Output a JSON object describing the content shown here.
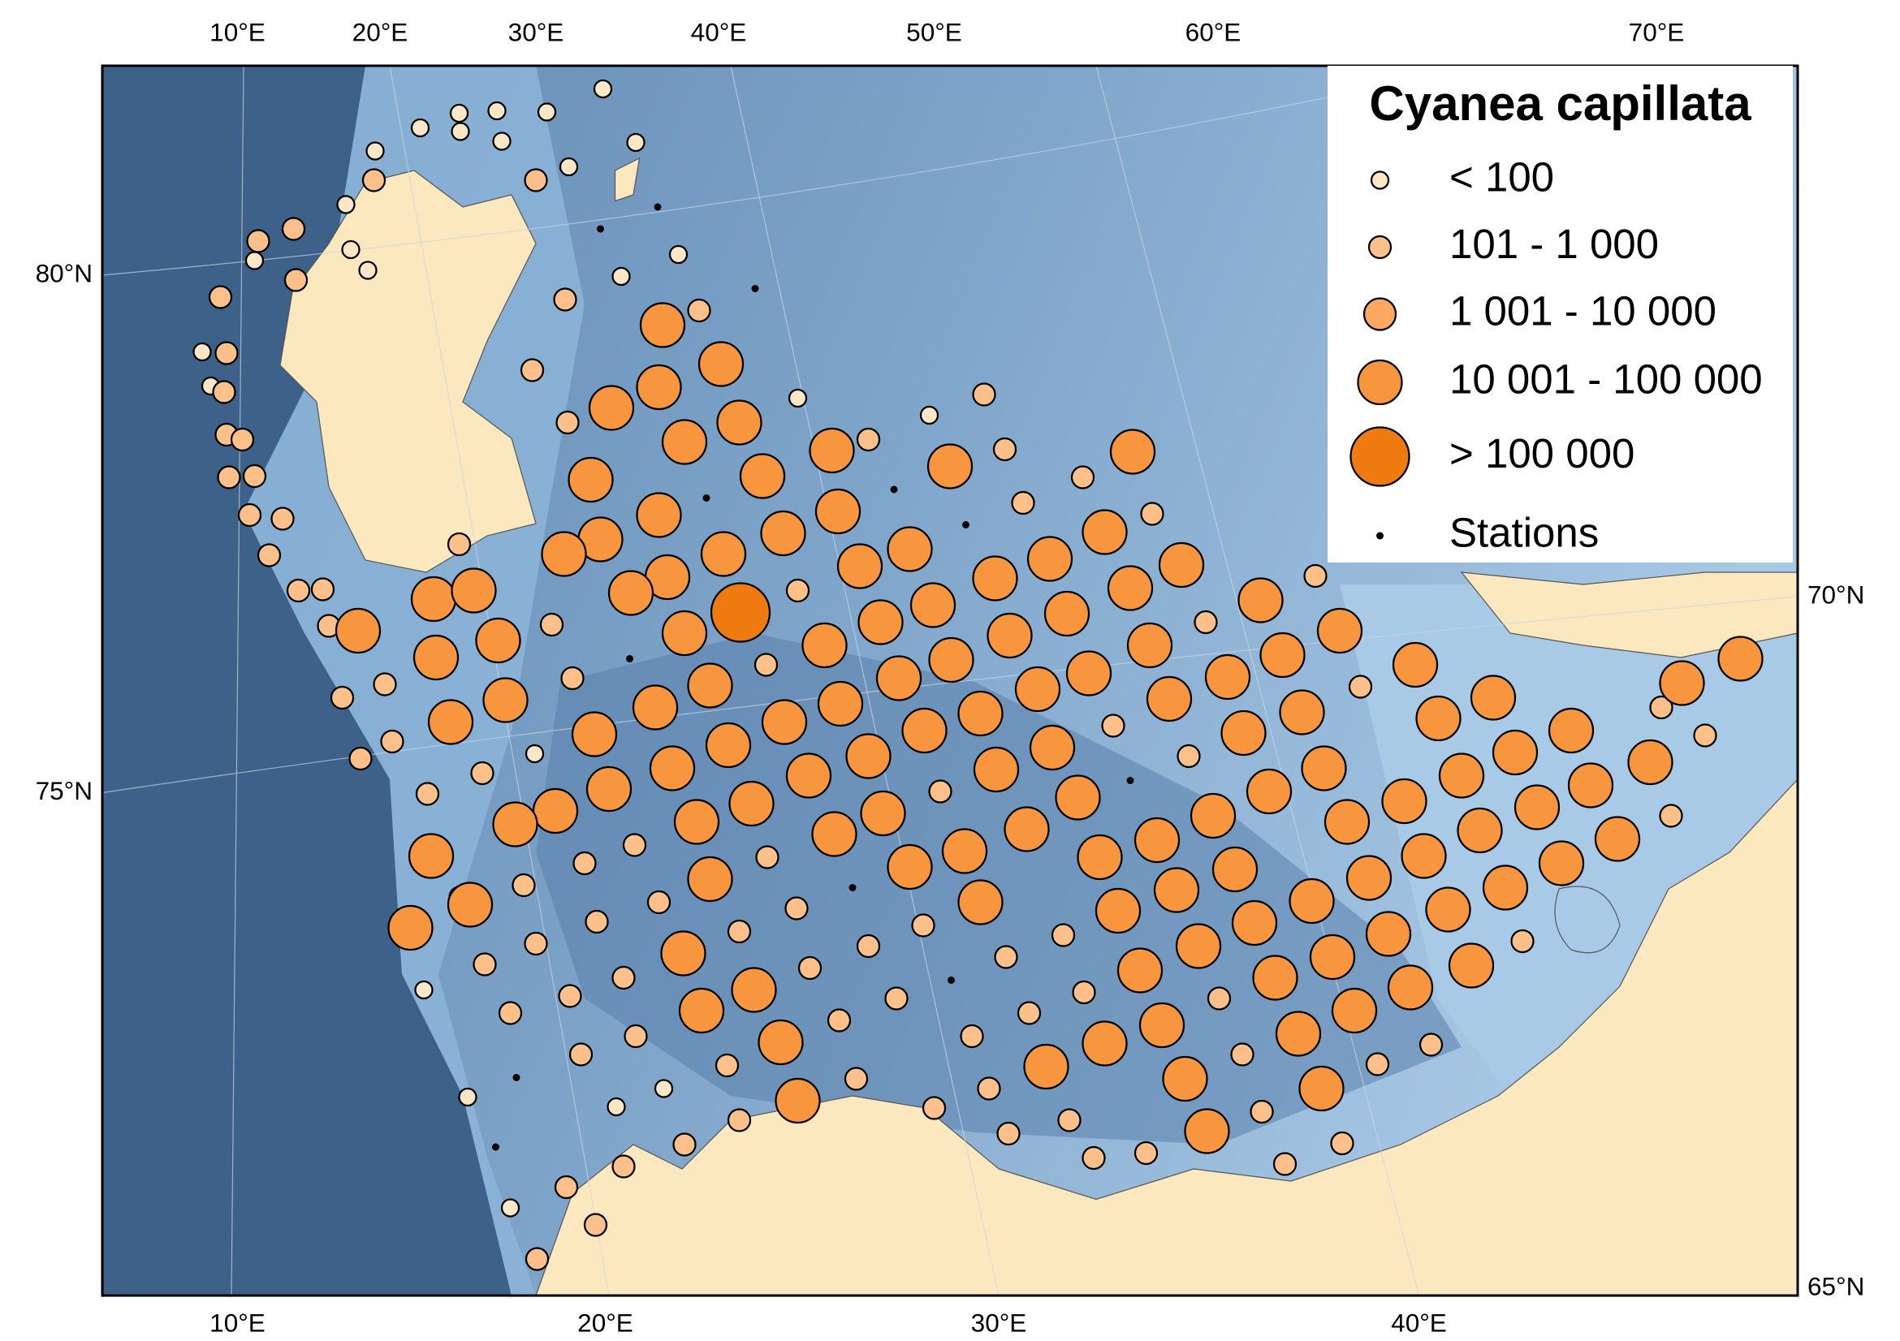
{
  "map": {
    "title": "Cyanea capillata",
    "legend": {
      "items": [
        {
          "label": "< 100",
          "color": "#fee7c6"
        },
        {
          "label": "101 - 1 000",
          "color": "#fdc08a"
        },
        {
          "label": "1 001 - 10 000",
          "color": "#fca862"
        },
        {
          "label": "10 001 - 100 000",
          "color": "#f8953f"
        },
        {
          "label": "> 100 000",
          "color": "#ef7b10"
        }
      ],
      "stations": "Stations"
    },
    "top_labels": [
      "10°E",
      "20°E",
      "30°E",
      "40°E",
      "50°E",
      "60°E",
      "70°E"
    ],
    "bottom_labels": [
      "10°E",
      "20°E",
      "30°E",
      "40°E"
    ],
    "left_labels": [
      "80°N",
      "75°N"
    ],
    "right_labels": [
      "70°N",
      "65°N"
    ]
  }
}
